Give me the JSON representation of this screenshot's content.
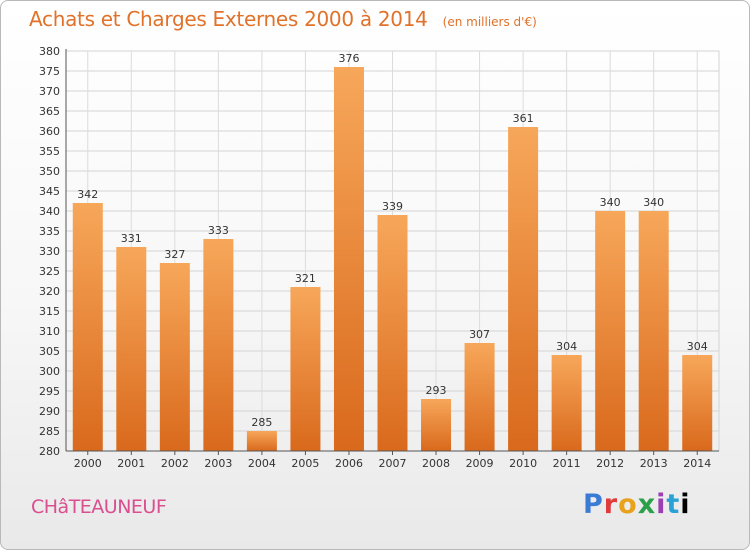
{
  "chart_data": {
    "type": "bar",
    "title": "Achats et Charges Externes 2000 à 2014",
    "subtitle": "(en milliers d'€)",
    "categories": [
      "2000",
      "2001",
      "2002",
      "2003",
      "2004",
      "2005",
      "2006",
      "2007",
      "2008",
      "2009",
      "2010",
      "2011",
      "2012",
      "2013",
      "2014"
    ],
    "values": [
      342,
      331,
      327,
      333,
      285,
      321,
      376,
      339,
      293,
      307,
      361,
      304,
      340,
      340,
      304
    ],
    "ylim": [
      280,
      380
    ],
    "ytick_step": 5,
    "grid": true,
    "bar_color_top": "#f7a75a",
    "bar_color_bottom": "#d9691c"
  },
  "footer": {
    "commune": "CHâTEAUNEUF",
    "logo_text": "Proxiti"
  }
}
